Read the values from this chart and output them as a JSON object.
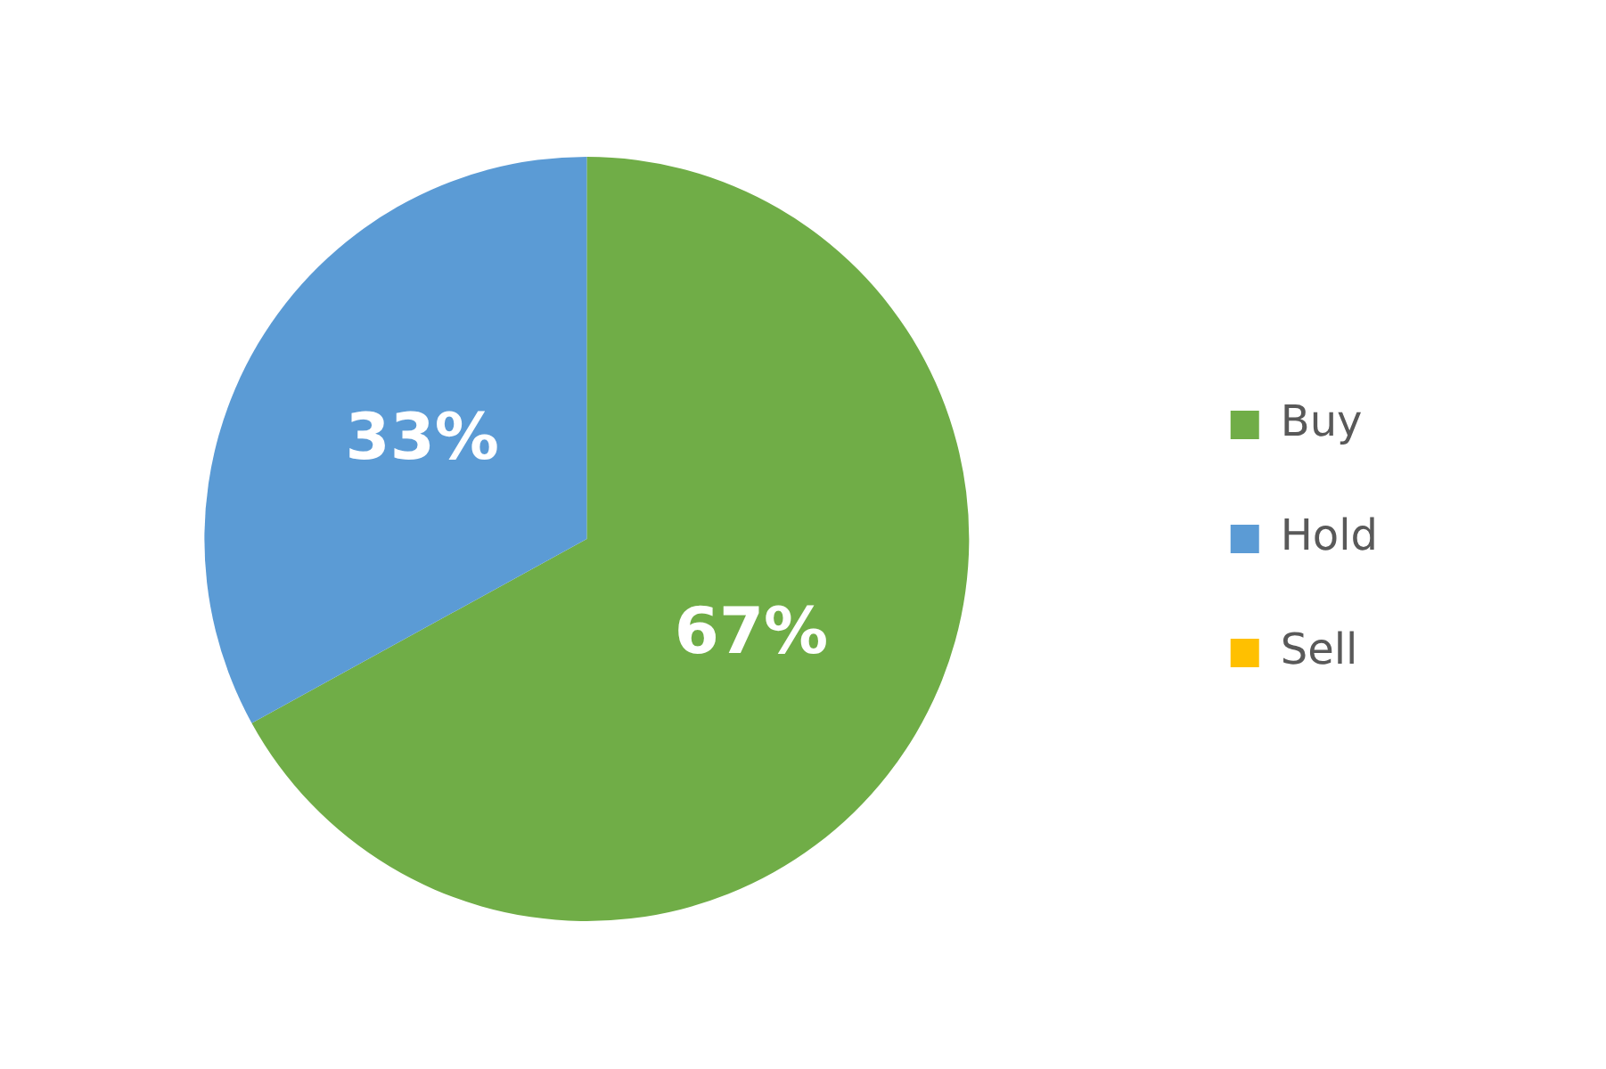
{
  "chart_data": {
    "type": "pie",
    "categories": [
      "Buy",
      "Hold",
      "Sell"
    ],
    "values": [
      67,
      33,
      0
    ],
    "colors": [
      "#70ad47",
      "#5b9bd5",
      "#ffc000"
    ],
    "value_labels": [
      "67%",
      "33%",
      null
    ],
    "legend": "right"
  }
}
